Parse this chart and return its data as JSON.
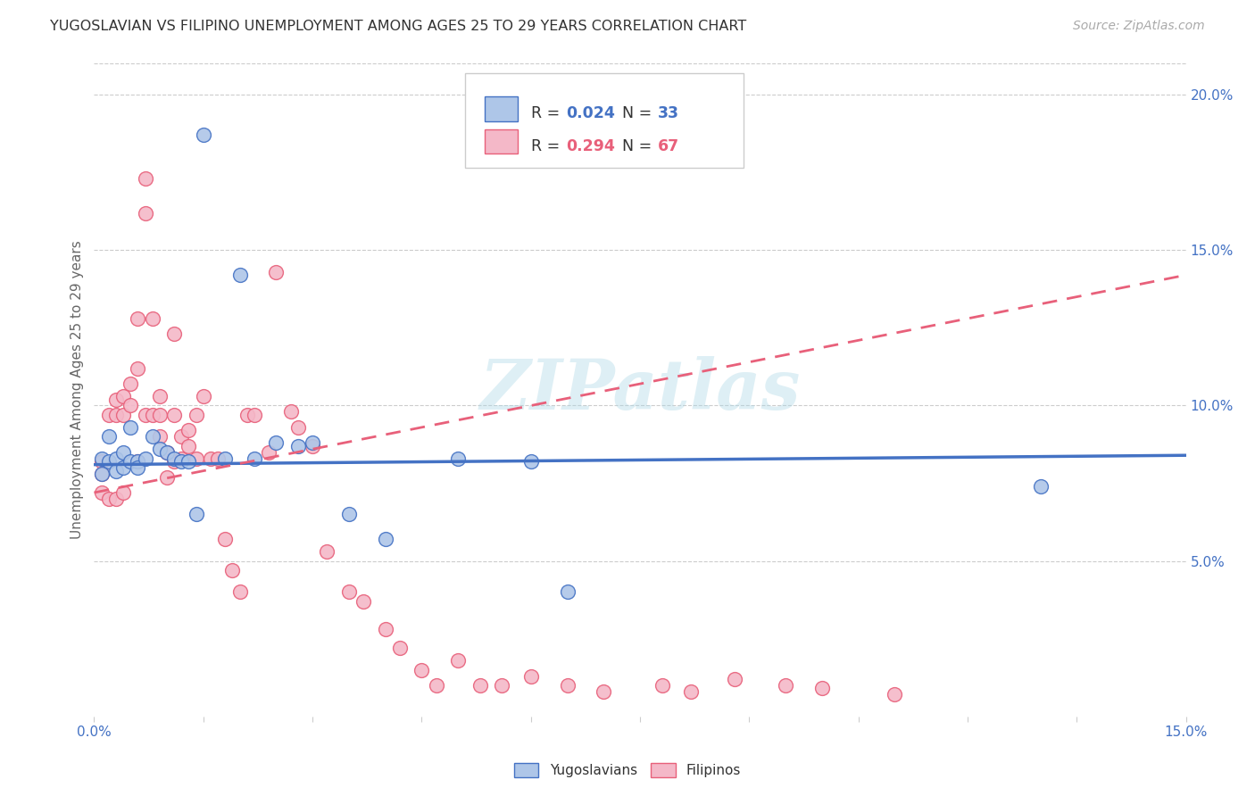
{
  "title": "YUGOSLAVIAN VS FILIPINO UNEMPLOYMENT AMONG AGES 25 TO 29 YEARS CORRELATION CHART",
  "source": "Source: ZipAtlas.com",
  "ylabel": "Unemployment Among Ages 25 to 29 years",
  "yug_R": "0.024",
  "yug_N": "33",
  "fil_R": "0.294",
  "fil_N": "67",
  "yug_color": "#aec6e8",
  "fil_color": "#f4b8c8",
  "yug_edge_color": "#4472c4",
  "fil_edge_color": "#e8607a",
  "yug_line_color": "#4472c4",
  "fil_line_color": "#e8607a",
  "watermark": "ZIPatlas",
  "xlim": [
    0.0,
    0.15
  ],
  "ylim": [
    0.0,
    0.21
  ],
  "yug_scatter_x": [
    0.001,
    0.001,
    0.002,
    0.002,
    0.003,
    0.003,
    0.004,
    0.004,
    0.005,
    0.005,
    0.006,
    0.006,
    0.007,
    0.008,
    0.009,
    0.01,
    0.011,
    0.012,
    0.013,
    0.014,
    0.015,
    0.018,
    0.02,
    0.022,
    0.025,
    0.028,
    0.03,
    0.035,
    0.04,
    0.05,
    0.06,
    0.065,
    0.13
  ],
  "yug_scatter_y": [
    0.083,
    0.078,
    0.09,
    0.082,
    0.083,
    0.079,
    0.085,
    0.08,
    0.093,
    0.082,
    0.082,
    0.08,
    0.083,
    0.09,
    0.086,
    0.085,
    0.083,
    0.082,
    0.082,
    0.065,
    0.187,
    0.083,
    0.142,
    0.083,
    0.088,
    0.087,
    0.088,
    0.065,
    0.057,
    0.083,
    0.082,
    0.04,
    0.074
  ],
  "fil_scatter_x": [
    0.001,
    0.001,
    0.001,
    0.002,
    0.002,
    0.003,
    0.003,
    0.003,
    0.004,
    0.004,
    0.004,
    0.005,
    0.005,
    0.006,
    0.006,
    0.006,
    0.007,
    0.007,
    0.007,
    0.008,
    0.008,
    0.009,
    0.009,
    0.009,
    0.01,
    0.01,
    0.011,
    0.011,
    0.011,
    0.012,
    0.012,
    0.013,
    0.013,
    0.014,
    0.014,
    0.015,
    0.016,
    0.017,
    0.018,
    0.019,
    0.02,
    0.021,
    0.022,
    0.024,
    0.025,
    0.027,
    0.028,
    0.03,
    0.032,
    0.035,
    0.037,
    0.04,
    0.042,
    0.045,
    0.047,
    0.05,
    0.053,
    0.056,
    0.06,
    0.065,
    0.07,
    0.078,
    0.082,
    0.088,
    0.095,
    0.1,
    0.11
  ],
  "fil_scatter_y": [
    0.082,
    0.078,
    0.072,
    0.097,
    0.07,
    0.102,
    0.097,
    0.07,
    0.103,
    0.097,
    0.072,
    0.107,
    0.1,
    0.128,
    0.112,
    0.082,
    0.173,
    0.162,
    0.097,
    0.128,
    0.097,
    0.103,
    0.097,
    0.09,
    0.085,
    0.077,
    0.123,
    0.097,
    0.082,
    0.09,
    0.083,
    0.092,
    0.087,
    0.097,
    0.083,
    0.103,
    0.083,
    0.083,
    0.057,
    0.047,
    0.04,
    0.097,
    0.097,
    0.085,
    0.143,
    0.098,
    0.093,
    0.087,
    0.053,
    0.04,
    0.037,
    0.028,
    0.022,
    0.015,
    0.01,
    0.018,
    0.01,
    0.01,
    0.013,
    0.01,
    0.008,
    0.01,
    0.008,
    0.012,
    0.01,
    0.009,
    0.007
  ],
  "yug_trend_x": [
    0.0,
    0.15
  ],
  "yug_trend_y": [
    0.081,
    0.084
  ],
  "fil_trend_x": [
    0.0,
    0.15
  ],
  "fil_trend_y": [
    0.072,
    0.142
  ]
}
